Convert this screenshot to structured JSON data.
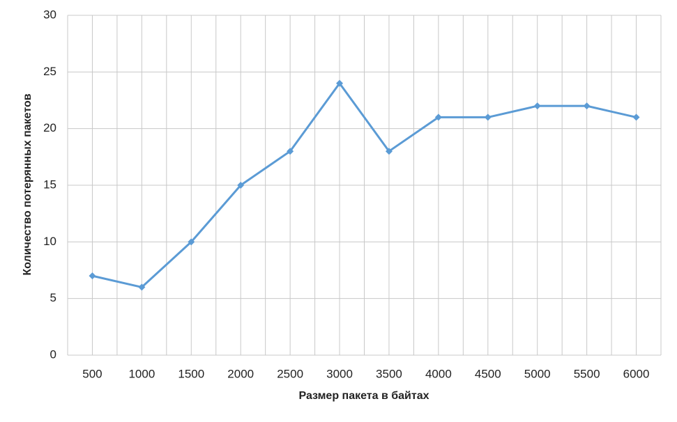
{
  "chart_data": {
    "type": "line",
    "x_label": "Размер пакета в байтах",
    "y_label": "Количество потерянных пакетов",
    "categories": [
      "500",
      "1000",
      "1500",
      "2000",
      "2500",
      "3000",
      "3500",
      "4000",
      "4500",
      "5000",
      "5500",
      "6000"
    ],
    "series": [
      {
        "color": "#5b9bd5",
        "values": [
          7,
          6,
          10,
          15,
          18,
          24,
          18,
          21,
          21,
          22,
          22,
          21
        ]
      }
    ],
    "ylim": [
      0,
      30
    ],
    "yticks": [
      0,
      5,
      10,
      15,
      20,
      25,
      30
    ],
    "grid": true
  }
}
